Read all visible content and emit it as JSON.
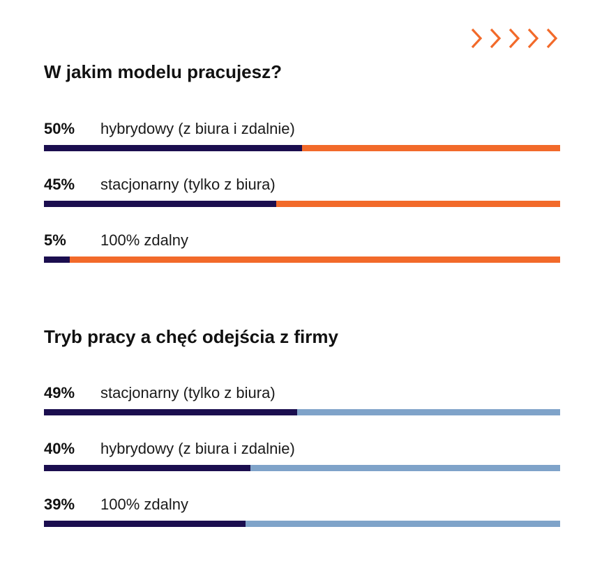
{
  "colors": {
    "accent_orange": "#f26a2a",
    "fill_navy": "#1b0e4f",
    "track_blue": "#7fa3c9"
  },
  "decoration": {
    "icon": "chevrons-right-icon",
    "count": 5
  },
  "chart_data": [
    {
      "type": "bar",
      "orientation": "horizontal",
      "title": "W jakim modelu pracujesz?",
      "categories": [
        "hybrydowy (z biura i zdalnie)",
        "stacjonarny (tylko z biura)",
        "100% zdalny"
      ],
      "values": [
        50,
        45,
        5
      ],
      "value_labels": [
        "50%",
        "45%",
        "5%"
      ],
      "xlim": [
        0,
        100
      ],
      "fill_color": "#1b0e4f",
      "track_color": "#f26a2a"
    },
    {
      "type": "bar",
      "orientation": "horizontal",
      "title": "Tryb pracy a chęć odejścia z firmy",
      "categories": [
        "stacjonarny (tylko z biura)",
        "hybrydowy (z biura i zdalnie)",
        "100% zdalny"
      ],
      "values": [
        49,
        40,
        39
      ],
      "value_labels": [
        "49%",
        "40%",
        "39%"
      ],
      "xlim": [
        0,
        100
      ],
      "fill_color": "#1b0e4f",
      "track_color": "#7fa3c9"
    }
  ]
}
